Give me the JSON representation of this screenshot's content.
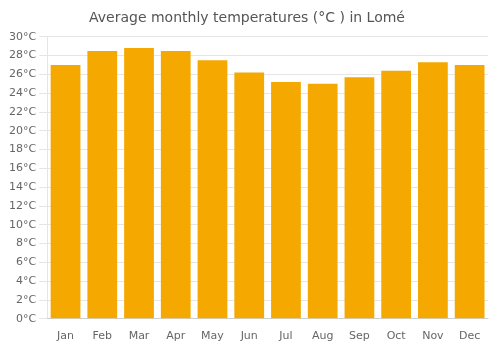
{
  "chart_data": {
    "type": "bar",
    "title": "Average monthly temperatures (°C ) in Lomé",
    "categories": [
      "Jan",
      "Feb",
      "Mar",
      "Apr",
      "May",
      "Jun",
      "Jul",
      "Aug",
      "Sep",
      "Oct",
      "Nov",
      "Dec"
    ],
    "values": [
      27.0,
      28.5,
      28.8,
      28.5,
      27.5,
      26.2,
      25.2,
      25.0,
      25.7,
      26.4,
      27.3,
      27.0
    ],
    "color": "#F5A800",
    "ylim": [
      0,
      30
    ],
    "yticks": [
      {
        "value": 0,
        "label": "0°C"
      },
      {
        "value": 2,
        "label": "2°C"
      },
      {
        "value": 4,
        "label": "4°C"
      },
      {
        "value": 6,
        "label": "6°C"
      },
      {
        "value": 8,
        "label": "8°C"
      },
      {
        "value": 10,
        "label": "10°C"
      },
      {
        "value": 12,
        "label": "12°C"
      },
      {
        "value": 14,
        "label": "14°C"
      },
      {
        "value": 16,
        "label": "16°C"
      },
      {
        "value": 18,
        "label": "18°C"
      },
      {
        "value": 20,
        "label": "20°C"
      },
      {
        "value": 22,
        "label": "22°C"
      },
      {
        "value": 24,
        "label": "24°C"
      },
      {
        "value": 26,
        "label": "26°C"
      },
      {
        "value": 28,
        "label": "28°C"
      },
      {
        "value": 30,
        "label": "30°C"
      }
    ],
    "grid": true
  }
}
